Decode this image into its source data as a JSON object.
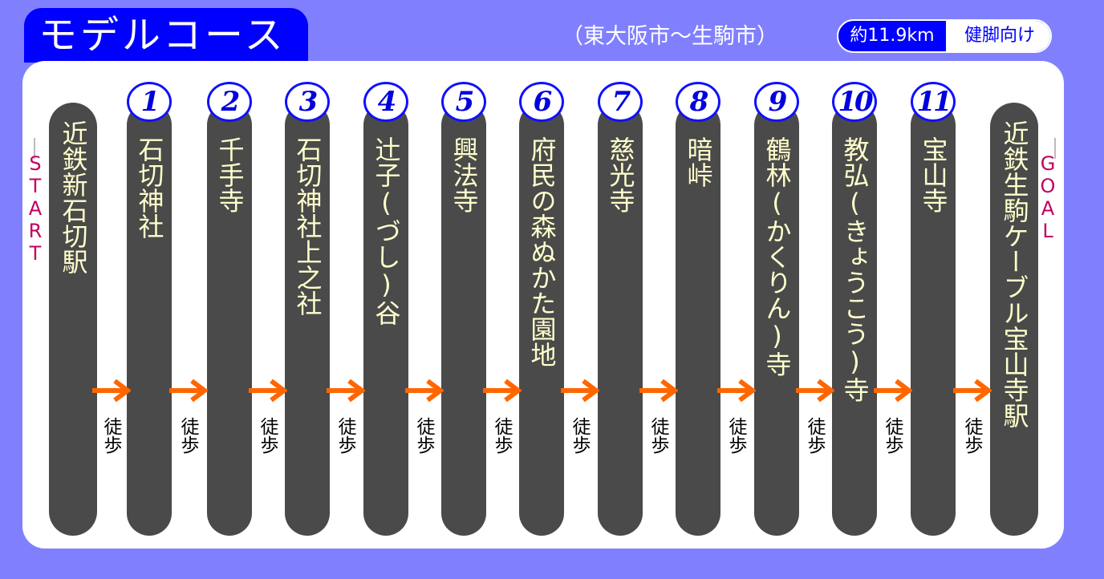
{
  "header": {
    "title": "モデルコース",
    "subtitle": "（東大阪市～生駒市）",
    "distance": "約11.9km",
    "level": "健脚向け"
  },
  "start": {
    "tag": "START",
    "label": "近鉄新石切駅"
  },
  "goal": {
    "tag": "GOAL",
    "label": "近鉄生駒ケーブル宝山寺駅"
  },
  "stops": [
    {
      "num": "1",
      "label": "石切神社"
    },
    {
      "num": "2",
      "label": "千手寺"
    },
    {
      "num": "3",
      "label": "石切神社上之社"
    },
    {
      "num": "4",
      "label": "辻子(づし)谷"
    },
    {
      "num": "5",
      "label": "興法寺"
    },
    {
      "num": "6",
      "label": "府民の森ぬかた園地"
    },
    {
      "num": "7",
      "label": "慈光寺"
    },
    {
      "num": "8",
      "label": "暗峠"
    },
    {
      "num": "9",
      "label": "鶴林(かくりん)寺"
    },
    {
      "num": "10",
      "label": "教弘(きょうこう)寺"
    },
    {
      "num": "11",
      "label": "宝山寺"
    }
  ],
  "walk_label": "徒歩",
  "colors": {
    "background": "#8080ff",
    "title_tab": "#0000ff",
    "bar": "#4a4a4a",
    "label_text": "#ffffcc",
    "badge_border": "#1010ff",
    "arrow": "#ff6600",
    "tag_text": "#c00060"
  }
}
